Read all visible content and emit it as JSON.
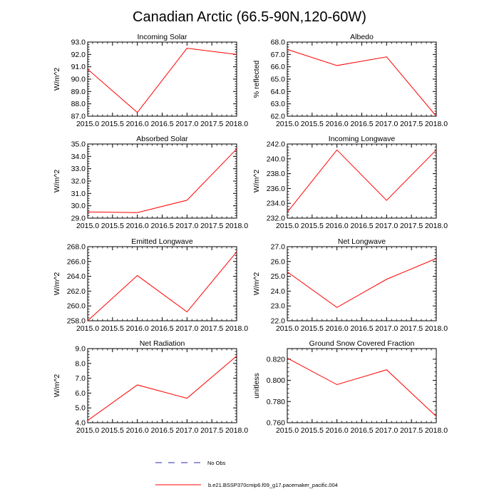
{
  "figure": {
    "title": "Canadian Arctic (66.5-90N,120-60W)",
    "line_color": "#ff0000",
    "obs_color": "#2b2ba8",
    "legend": [
      {
        "label": "No Obs",
        "style": "dashed",
        "color": "#2b2ba8"
      },
      {
        "label": "b.e21.BSSP370cmip6.f09_g17.pacemaker_pacific.004",
        "style": "solid",
        "color": "#ff0000"
      }
    ]
  },
  "chart_data": [
    {
      "type": "line",
      "title": "Incoming Solar",
      "xlabel": "",
      "ylabel": "W/m^2",
      "x": [
        2015,
        2016,
        2017,
        2018
      ],
      "values": [
        90.8,
        87.3,
        92.5,
        92.0
      ],
      "xlim": [
        2015,
        2018
      ],
      "ylim": [
        87,
        93
      ],
      "xticks": [
        "2015.0",
        "2015.5",
        "2016.0",
        "2016.5",
        "2017.0",
        "2017.5",
        "2018.0"
      ],
      "yticks": [
        "87.0",
        "88.0",
        "89.0",
        "90.0",
        "91.0",
        "92.0",
        "93.0"
      ]
    },
    {
      "type": "line",
      "title": "Albedo",
      "xlabel": "",
      "ylabel": "% reflected",
      "x": [
        2015,
        2016,
        2017,
        2018
      ],
      "values": [
        67.4,
        66.1,
        66.8,
        62.0
      ],
      "xlim": [
        2015,
        2018
      ],
      "ylim": [
        62,
        68
      ],
      "xticks": [
        "2015.0",
        "2015.5",
        "2016.0",
        "2016.5",
        "2017.0",
        "2017.5",
        "2018.0"
      ],
      "yticks": [
        "62.0",
        "63.0",
        "64.0",
        "65.0",
        "66.0",
        "67.0",
        "68.0"
      ]
    },
    {
      "type": "line",
      "title": "Absorbed Solar",
      "xlabel": "",
      "ylabel": "W/m^2",
      "x": [
        2015,
        2016,
        2017,
        2018
      ],
      "values": [
        29.5,
        29.45,
        30.45,
        34.6
      ],
      "xlim": [
        2015,
        2018
      ],
      "ylim": [
        29,
        35
      ],
      "xticks": [
        "2015.0",
        "2015.5",
        "2016.0",
        "2016.5",
        "2017.0",
        "2017.5",
        "2018.0"
      ],
      "yticks": [
        "29.0",
        "30.0",
        "31.0",
        "32.0",
        "33.0",
        "34.0",
        "35.0"
      ]
    },
    {
      "type": "line",
      "title": "Incoming Longwave",
      "xlabel": "",
      "ylabel": "W/m^2",
      "x": [
        2015,
        2016,
        2017,
        2018
      ],
      "values": [
        232.8,
        241.2,
        234.4,
        241.2
      ],
      "xlim": [
        2015,
        2018
      ],
      "ylim": [
        232,
        242
      ],
      "xticks": [
        "2015.0",
        "2015.5",
        "2016.0",
        "2016.5",
        "2017.0",
        "2017.5",
        "2018.0"
      ],
      "yticks": [
        "232.0",
        "234.0",
        "236.0",
        "238.0",
        "240.0",
        "242.0"
      ]
    },
    {
      "type": "line",
      "title": "Emitted Longwave",
      "xlabel": "",
      "ylabel": "W/m^2",
      "x": [
        2015,
        2016,
        2017,
        2018
      ],
      "values": [
        258.0,
        264.1,
        259.2,
        267.3
      ],
      "xlim": [
        2015,
        2018
      ],
      "ylim": [
        258,
        268
      ],
      "xticks": [
        "2015.0",
        "2015.5",
        "2016.0",
        "2016.5",
        "2017.0",
        "2017.5",
        "2018.0"
      ],
      "yticks": [
        "258.0",
        "260.0",
        "262.0",
        "264.0",
        "266.0",
        "268.0"
      ]
    },
    {
      "type": "line",
      "title": "Net Longwave",
      "xlabel": "",
      "ylabel": "W/m^2",
      "x": [
        2015,
        2016,
        2017,
        2018
      ],
      "values": [
        25.3,
        22.9,
        24.8,
        26.2
      ],
      "xlim": [
        2015,
        2018
      ],
      "ylim": [
        22,
        27
      ],
      "xticks": [
        "2015.0",
        "2015.5",
        "2016.0",
        "2016.5",
        "2017.0",
        "2017.5",
        "2018.0"
      ],
      "yticks": [
        "22.0",
        "23.0",
        "24.0",
        "25.0",
        "26.0",
        "27.0"
      ]
    },
    {
      "type": "line",
      "title": "Net Radiation",
      "xlabel": "",
      "ylabel": "W/m^2",
      "x": [
        2015,
        2016,
        2017,
        2018
      ],
      "values": [
        4.15,
        6.55,
        5.65,
        8.5
      ],
      "xlim": [
        2015,
        2018
      ],
      "ylim": [
        4,
        9
      ],
      "xticks": [
        "2015.0",
        "2015.5",
        "2016.0",
        "2016.5",
        "2017.0",
        "2017.5",
        "2018.0"
      ],
      "yticks": [
        "4.0",
        "5.0",
        "6.0",
        "7.0",
        "8.0",
        "9.0"
      ]
    },
    {
      "type": "line",
      "title": "Ground Snow Covered Fraction",
      "xlabel": "",
      "ylabel": "unitless",
      "x": [
        2015,
        2016,
        2017,
        2018
      ],
      "values": [
        0.821,
        0.796,
        0.81,
        0.766
      ],
      "xlim": [
        2015,
        2018
      ],
      "ylim": [
        0.76,
        0.83
      ],
      "xticks": [
        "2015.0",
        "2015.5",
        "2016.0",
        "2016.5",
        "2017.0",
        "2017.5",
        "2018.0"
      ],
      "yticks": [
        "0.760",
        "0.780",
        "0.800",
        "0.820"
      ],
      "ytick_values": [
        0.76,
        0.78,
        0.8,
        0.82
      ]
    }
  ]
}
